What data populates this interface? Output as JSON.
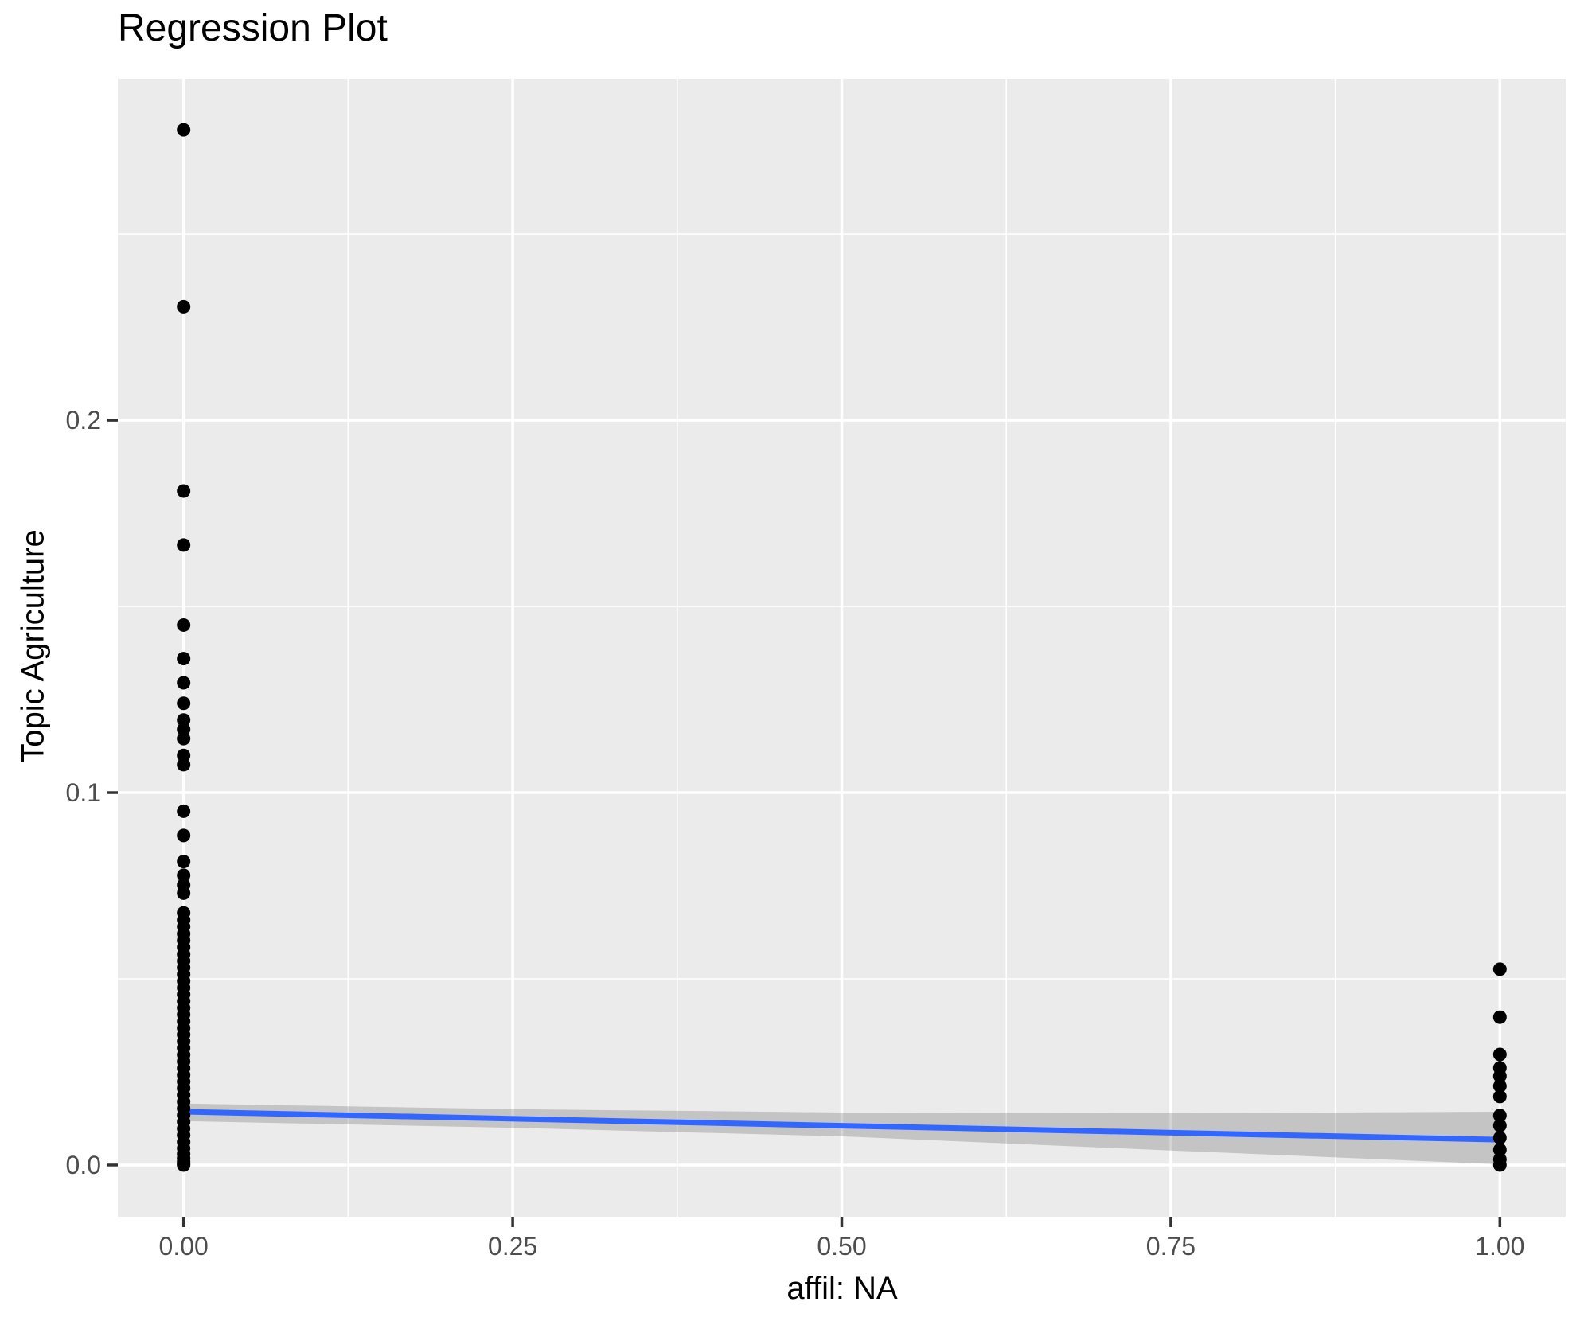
{
  "chart_data": {
    "type": "scatter",
    "title": "Regression Plot",
    "xlabel": "affil: NA",
    "ylabel": "Topic Agriculture",
    "xlim": [
      -0.05,
      1.05
    ],
    "ylim": [
      -0.0139,
      0.2917
    ],
    "grid": true,
    "legend": "none",
    "x_ticks": {
      "values": [
        0,
        0.25,
        0.5,
        0.75,
        1
      ],
      "labels": [
        "0.00",
        "0.25",
        "0.50",
        "0.75",
        "1.00"
      ],
      "minor": [
        0.125,
        0.375,
        0.625,
        0.875
      ]
    },
    "y_ticks": {
      "values": [
        0,
        0.1,
        0.2
      ],
      "labels": [
        "0.0",
        "0.1",
        "0.2"
      ],
      "minor": [
        0.05,
        0.15,
        0.25
      ]
    },
    "point_groups": [
      {
        "x": 0,
        "y_values": [
          0.278,
          0.2305,
          0.181,
          0.1665,
          0.145,
          0.136,
          0.1295,
          0.124,
          0.1195,
          0.117,
          0.1145,
          0.11,
          0.1075,
          0.095,
          0.0885,
          0.0815,
          0.0778,
          0.0752,
          0.073,
          0.0677,
          0.0658,
          0.064,
          0.0621,
          0.0603,
          0.0585,
          0.0566,
          0.0548,
          0.053,
          0.0512,
          0.0494,
          0.0476,
          0.0458,
          0.044,
          0.0422,
          0.0404,
          0.0386,
          0.0368,
          0.035,
          0.0332,
          0.0314,
          0.0296,
          0.0278,
          0.026,
          0.0242,
          0.0224,
          0.0206,
          0.0188,
          0.017,
          0.0152,
          0.0134,
          0.0116,
          0.0098,
          0.008,
          0.0062,
          0.0045,
          0.003,
          0.0018,
          0.0009,
          0.0003,
          0.0
        ]
      },
      {
        "x": 1,
        "y_values": [
          0.0526,
          0.0397,
          0.0297,
          0.0261,
          0.0239,
          0.0212,
          0.0184,
          0.0133,
          0.0106,
          0.0073,
          0.0041,
          0.0015,
          0.0
        ]
      }
    ],
    "regression_line": {
      "x": [
        0,
        1
      ],
      "y": [
        0.0143,
        0.0068
      ]
    },
    "ci_band": {
      "x": [
        0,
        0.25,
        0.5,
        0.75,
        1
      ],
      "upper": [
        0.0165,
        0.015,
        0.0141,
        0.0139,
        0.0143
      ],
      "lower": [
        0.0118,
        0.01,
        0.0077,
        0.0039,
        0.0002
      ]
    },
    "colors": {
      "panel_background": "#EBEBEB",
      "grid": "#FFFFFF",
      "point": "#000000",
      "regression_line": "#3366FF",
      "ci_band": "rgba(60,60,60,0.22)",
      "tick_label": "#4D4D4D",
      "tick_mark": "#333333",
      "title": "#000000",
      "axis_title": "#000000"
    }
  }
}
